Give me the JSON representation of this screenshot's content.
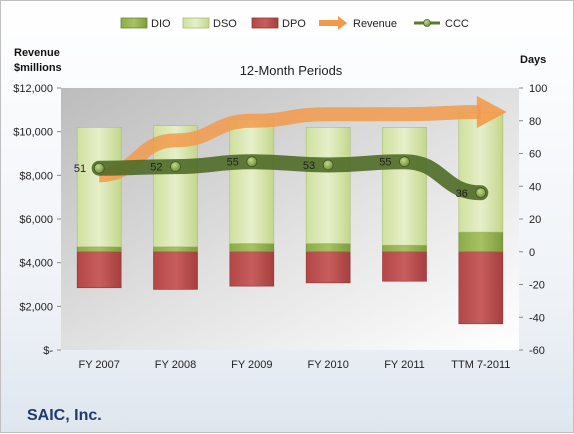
{
  "chart_data": {
    "type": "bar",
    "title": "12-Month Periods",
    "company": "SAIC, Inc.",
    "left_axis_label_line1": "Revenue",
    "left_axis_label_line2": "$millions",
    "right_axis_label": "Days",
    "categories": [
      "FY 2007",
      "FY 2008",
      "FY 2009",
      "FY 2010",
      "FY 2011",
      "TTM 7-2011"
    ],
    "left_ylim": [
      0,
      12000
    ],
    "left_ticks": [
      0,
      2000,
      4000,
      6000,
      8000,
      10000,
      12000
    ],
    "left_tick_labels": [
      "$-",
      "$2,000",
      "$4,000",
      "$6,000",
      "$8,000",
      "$10,000",
      "$12,000"
    ],
    "right_ylim": [
      -60,
      100
    ],
    "right_ticks": [
      -60,
      -40,
      -20,
      0,
      20,
      40,
      60,
      80,
      100
    ],
    "right_tick_labels": [
      "-60",
      "-40",
      "-20",
      "0",
      "20",
      "40",
      "60",
      "80",
      "100"
    ],
    "legend_position": "top",
    "series": [
      {
        "name": "DIO",
        "axis": "right",
        "kind": "stacked-bar",
        "color": "#7a9a3c",
        "values": [
          3,
          3,
          5,
          5,
          4,
          12
        ]
      },
      {
        "name": "DSO",
        "axis": "right",
        "kind": "stacked-bar",
        "color": "#d7e4b2",
        "values": [
          73,
          74,
          76,
          71,
          72,
          73
        ]
      },
      {
        "name": "DPO",
        "axis": "right",
        "kind": "negative-bar",
        "color": "#b84a4a",
        "values": [
          -22,
          -23,
          -21,
          -19,
          -18,
          -44
        ]
      },
      {
        "name": "Revenue",
        "axis": "left",
        "kind": "trend-arrow",
        "color": "#f29a4c",
        "values": [
          8000,
          9600,
          10500,
          10800,
          10800,
          10900
        ]
      },
      {
        "name": "CCC",
        "axis": "right",
        "kind": "line-markers",
        "color": "#5c7a2e",
        "values": [
          51,
          52,
          55,
          53,
          55,
          36
        ]
      }
    ],
    "grid": false
  }
}
